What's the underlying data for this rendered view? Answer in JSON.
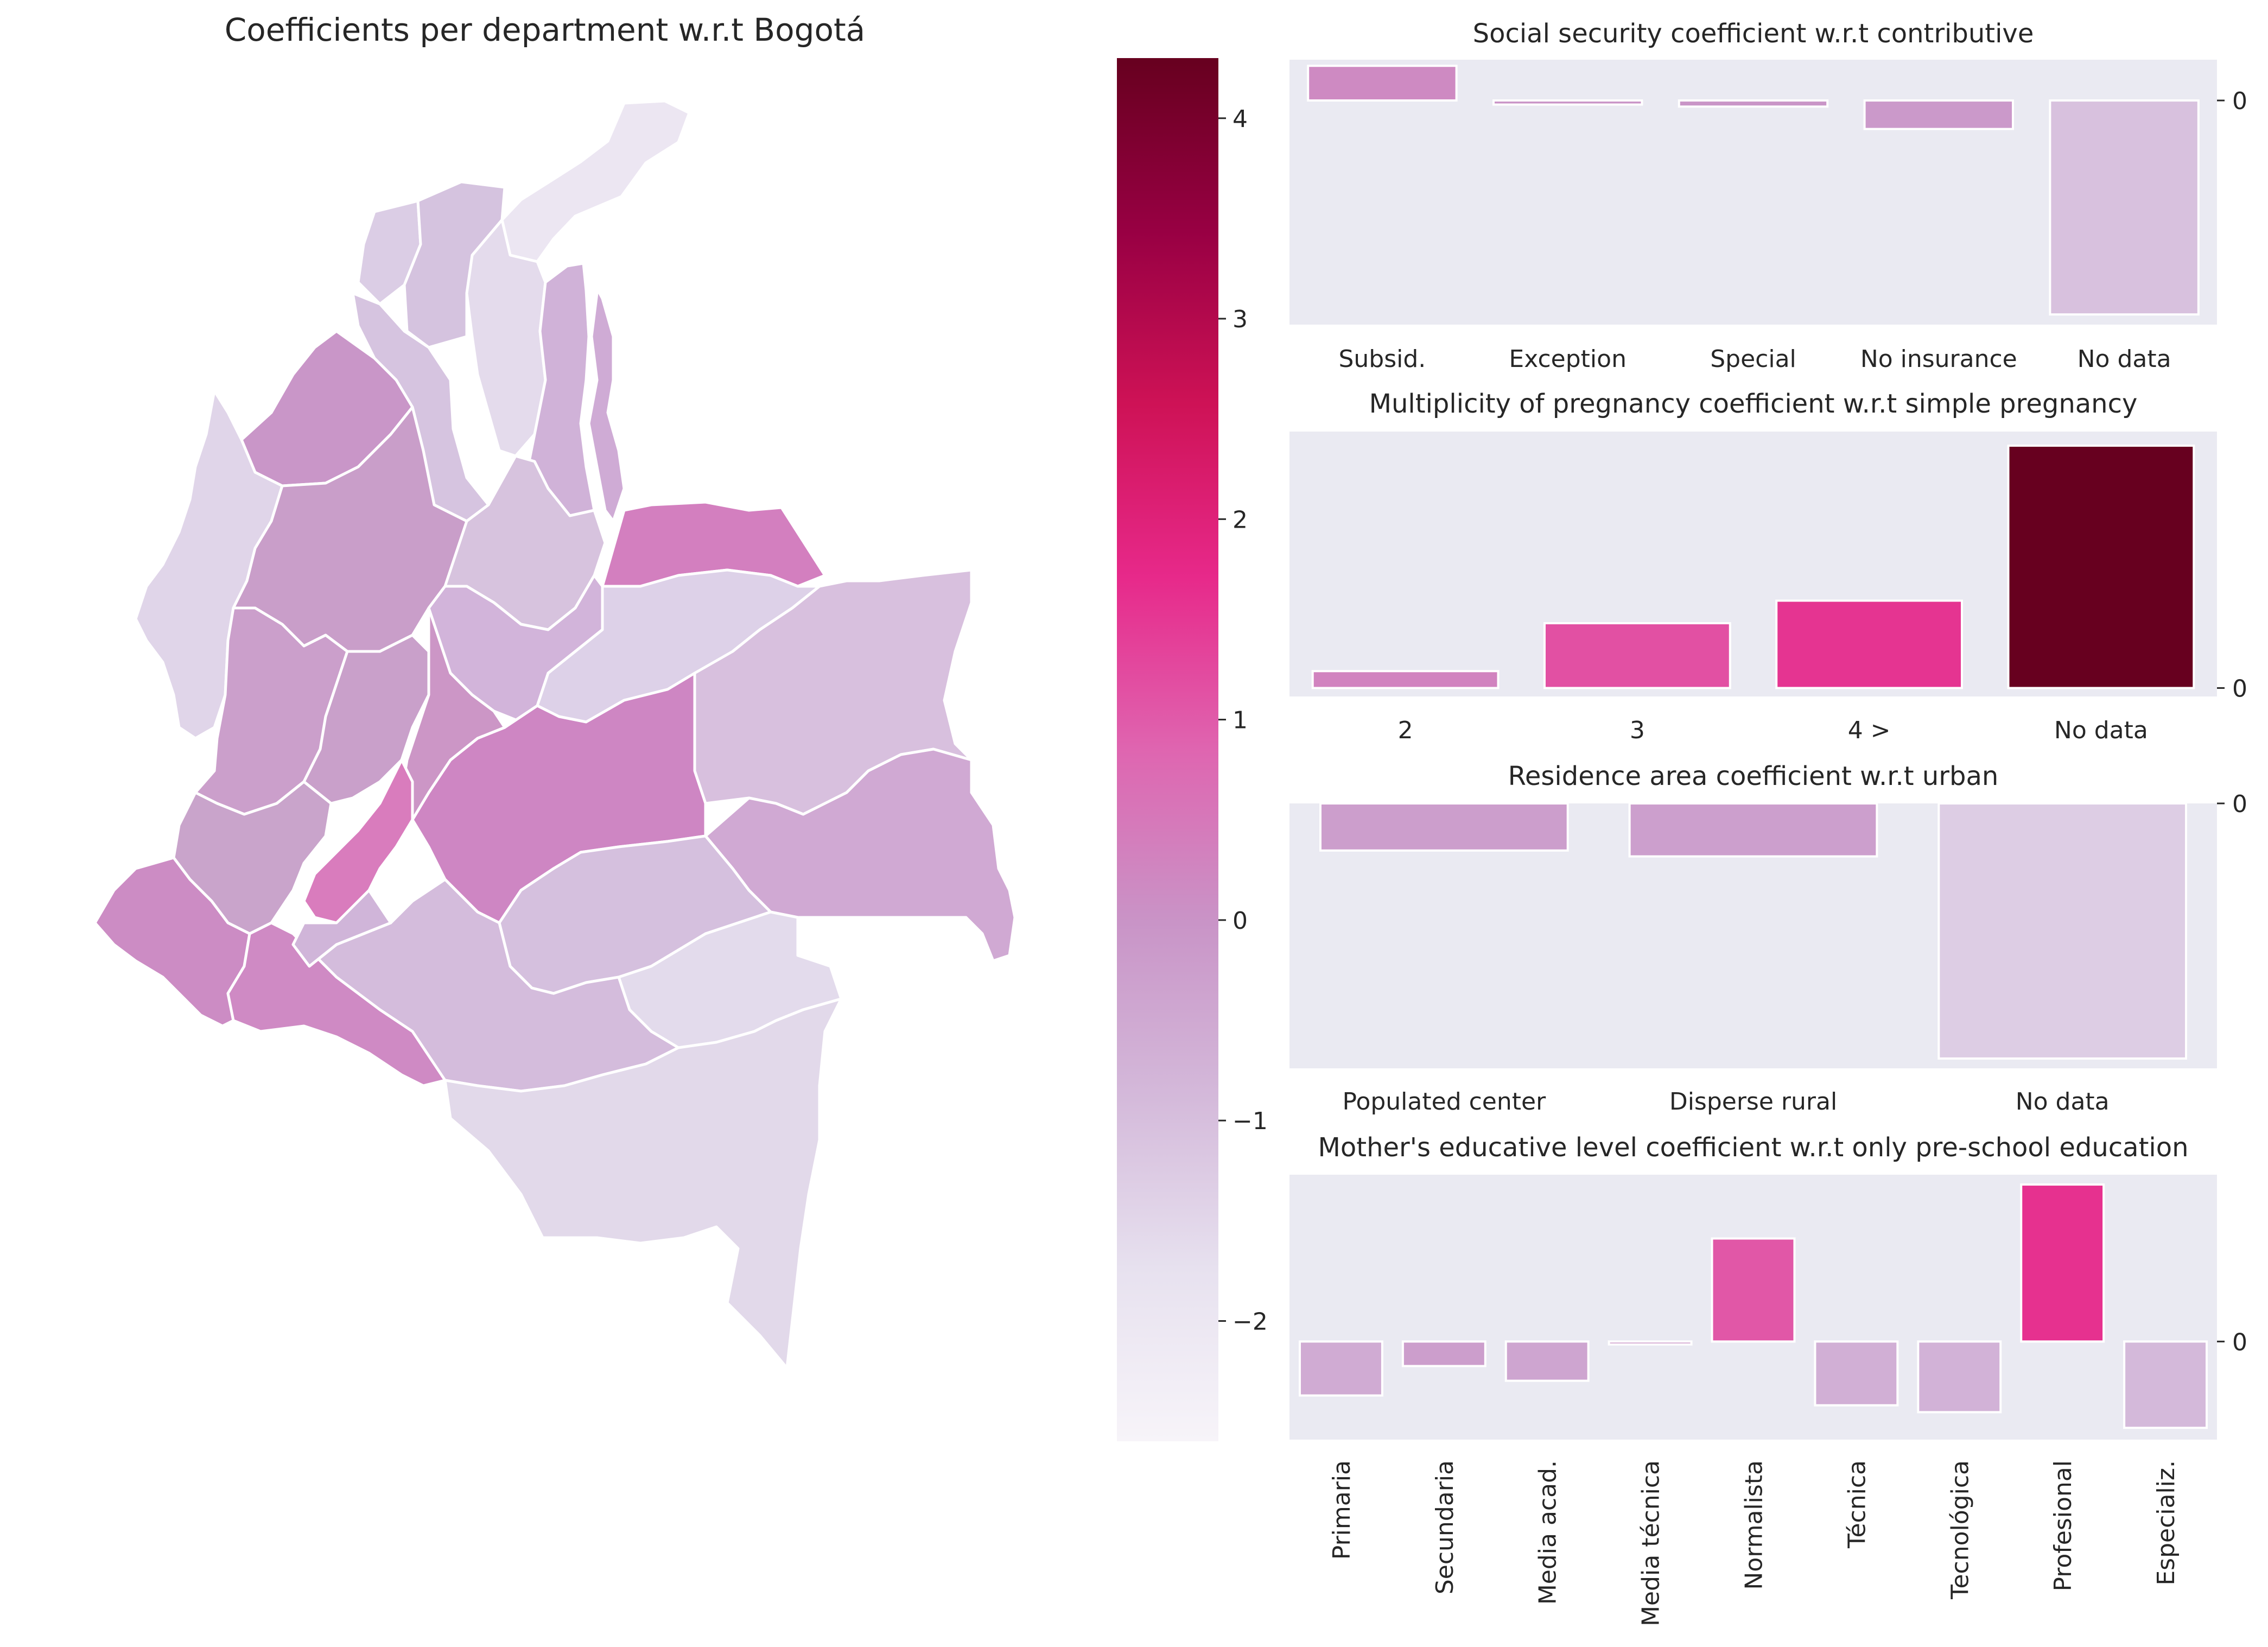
{
  "map": {
    "title": "Coefficients per department w.r.t Bogotá",
    "colorbar": {
      "min": -2.6,
      "max": 4.3,
      "ticks": [
        4,
        3,
        2,
        1,
        0,
        -1,
        -2
      ],
      "tick_labels": [
        "4",
        "3",
        "2",
        "1",
        "0",
        "−1",
        "−2"
      ],
      "colors": [
        "#f7f4f9",
        "#e7e1ef",
        "#d4b9da",
        "#c994c7",
        "#df65b0",
        "#e7298a",
        "#ce1256",
        "#980043",
        "#67001f"
      ]
    }
  },
  "chart_data": [
    {
      "type": "bar",
      "title": "Social security coefficient w.r.t contributive",
      "categories": [
        "Subsid.",
        "Exception",
        "Special",
        "No insurance",
        "No data"
      ],
      "values": [
        0.17,
        -0.02,
        -0.03,
        -0.14,
        -1.05
      ],
      "ylim": [
        -1.1,
        0.2
      ],
      "yticks": [
        0
      ],
      "ytick_labels": [
        "0"
      ],
      "grid": false
    },
    {
      "type": "bar",
      "title": "Multiplicity of pregnancy coefficient w.r.t simple pregnancy",
      "categories": [
        "2",
        "3",
        "4 >",
        "No data"
      ],
      "values": [
        0.3,
        1.15,
        1.55,
        4.3
      ],
      "ylim": [
        -0.15,
        4.55
      ],
      "yticks": [
        0
      ],
      "ytick_labels": [
        "0"
      ],
      "grid": false
    },
    {
      "type": "bar",
      "title": "Residence area coefficient w.r.t urban",
      "categories": [
        "Populated center",
        "Disperse rural",
        "No data"
      ],
      "values": [
        -0.24,
        -0.27,
        -1.3
      ],
      "ylim": [
        -1.35,
        0
      ],
      "yticks": [
        0
      ],
      "ytick_labels": [
        "0"
      ],
      "grid": false
    },
    {
      "type": "bar",
      "title": "Mother's educative level coefficient w.r.t only pre-school education",
      "categories": [
        "Primaria",
        "Secundaria",
        "Media acad.",
        "Media técnica",
        "Normalista",
        "Técnica",
        "Tecnológica",
        "Profesional",
        "Especializ."
      ],
      "values": [
        -0.55,
        -0.25,
        -0.4,
        -0.03,
        1.05,
        -0.65,
        -0.72,
        1.6,
        -0.88
      ],
      "ylim": [
        -1.0,
        1.7
      ],
      "yticks": [
        0
      ],
      "ytick_labels": [
        "0"
      ],
      "grid": false
    }
  ]
}
